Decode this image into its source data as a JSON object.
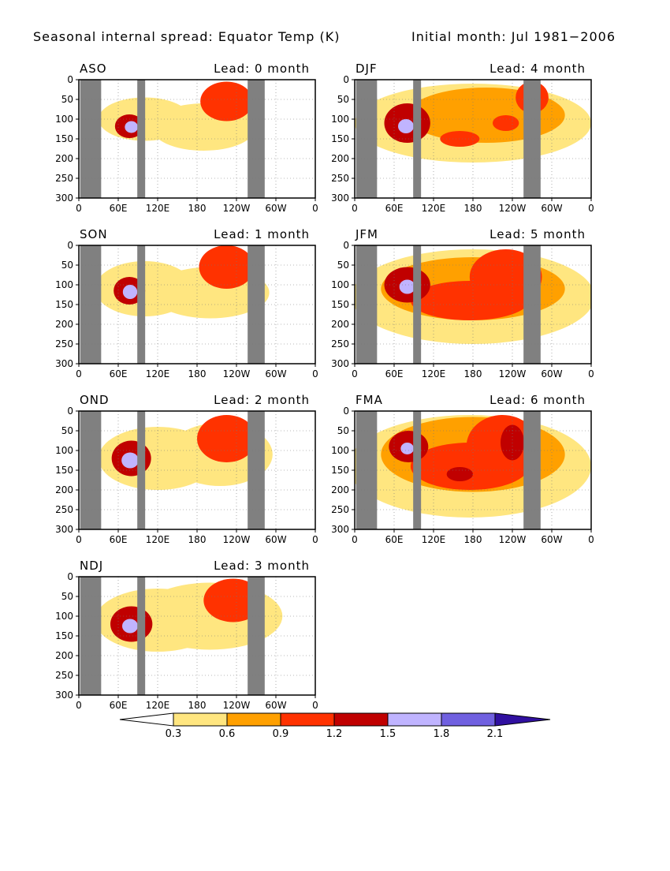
{
  "title_left": "Seasonal internal spread: Equator Temp (K)",
  "title_right": "Initial month: Jul 1981−2006",
  "colors": {
    "land": "#808080",
    "levels": [
      "#ffffff",
      "#ffe680",
      "#ffa000",
      "#ff3200",
      "#c00000",
      "#c0b4ff",
      "#7060e0",
      "#3010a0"
    ]
  },
  "chart_data": [
    {
      "type": "heatmap",
      "season": "ASO",
      "lead_label": "Lead: 0 month",
      "x_ticks": [
        "0",
        "60E",
        "120E",
        "180",
        "120W",
        "60W",
        "0"
      ],
      "y_ticks": [
        "0",
        "50",
        "100",
        "150",
        "200",
        "250",
        "300"
      ],
      "xlim": [
        0,
        360
      ],
      "ylim": [
        300,
        0
      ],
      "grid": true,
      "land_lon_bands": [
        [
          2,
          34
        ],
        [
          89,
          101
        ],
        [
          257,
          283
        ]
      ],
      "blobs": [
        {
          "lon": 100,
          "depth": 100,
          "rx": 70,
          "ry": 55,
          "value": 0.45
        },
        {
          "lon": 190,
          "depth": 120,
          "rx": 80,
          "ry": 60,
          "value": 0.4
        },
        {
          "lon": 225,
          "depth": 55,
          "rx": 40,
          "ry": 50,
          "value": 0.9
        },
        {
          "lon": 240,
          "depth": 45,
          "rx": 18,
          "ry": 30,
          "value": 1.0
        },
        {
          "lon": 77,
          "depth": 118,
          "rx": 22,
          "ry": 30,
          "value": 1.35
        },
        {
          "lon": 80,
          "depth": 120,
          "rx": 10,
          "ry": 15,
          "value": 1.65
        }
      ]
    },
    {
      "type": "heatmap",
      "season": "SON",
      "lead_label": "Lead: 1 month",
      "x_ticks": [
        "0",
        "60E",
        "120E",
        "180",
        "120W",
        "60W",
        "0"
      ],
      "y_ticks": [
        "0",
        "50",
        "100",
        "150",
        "200",
        "250",
        "300"
      ],
      "xlim": [
        0,
        360
      ],
      "ylim": [
        300,
        0
      ],
      "grid": true,
      "land_lon_bands": [
        [
          2,
          34
        ],
        [
          89,
          101
        ],
        [
          257,
          283
        ]
      ],
      "blobs": [
        {
          "lon": 100,
          "depth": 110,
          "rx": 75,
          "ry": 70,
          "value": 0.45
        },
        {
          "lon": 200,
          "depth": 120,
          "rx": 90,
          "ry": 65,
          "value": 0.4
        },
        {
          "lon": 225,
          "depth": 55,
          "rx": 42,
          "ry": 55,
          "value": 0.9
        },
        {
          "lon": 235,
          "depth": 45,
          "rx": 18,
          "ry": 28,
          "value": 1.0
        },
        {
          "lon": 77,
          "depth": 115,
          "rx": 24,
          "ry": 35,
          "value": 1.35
        },
        {
          "lon": 78,
          "depth": 118,
          "rx": 11,
          "ry": 18,
          "value": 1.65
        }
      ]
    },
    {
      "type": "heatmap",
      "season": "OND",
      "lead_label": "Lead: 2 month",
      "x_ticks": [
        "0",
        "60E",
        "120E",
        "180",
        "120W",
        "60W",
        "0"
      ],
      "y_ticks": [
        "0",
        "50",
        "100",
        "150",
        "200",
        "250",
        "300"
      ],
      "xlim": [
        0,
        360
      ],
      "ylim": [
        300,
        0
      ],
      "grid": true,
      "land_lon_bands": [
        [
          2,
          34
        ],
        [
          89,
          101
        ],
        [
          257,
          283
        ]
      ],
      "blobs": [
        {
          "lon": 120,
          "depth": 120,
          "rx": 90,
          "ry": 80,
          "value": 0.45
        },
        {
          "lon": 215,
          "depth": 110,
          "rx": 80,
          "ry": 80,
          "value": 0.4
        },
        {
          "lon": 225,
          "depth": 70,
          "rx": 45,
          "ry": 60,
          "value": 0.9
        },
        {
          "lon": 240,
          "depth": 40,
          "rx": 15,
          "ry": 25,
          "value": 1.0
        },
        {
          "lon": 80,
          "depth": 120,
          "rx": 30,
          "ry": 45,
          "value": 1.35
        },
        {
          "lon": 78,
          "depth": 125,
          "rx": 13,
          "ry": 20,
          "value": 1.7
        }
      ]
    },
    {
      "type": "heatmap",
      "season": "NDJ",
      "lead_label": "Lead: 3 month",
      "x_ticks": [
        "0",
        "60E",
        "120E",
        "180",
        "120W",
        "60W",
        "0"
      ],
      "y_ticks": [
        "0",
        "50",
        "100",
        "150",
        "200",
        "250",
        "300"
      ],
      "xlim": [
        0,
        360
      ],
      "ylim": [
        300,
        0
      ],
      "grid": true,
      "land_lon_bands": [
        [
          2,
          34
        ],
        [
          89,
          101
        ],
        [
          257,
          283
        ]
      ],
      "blobs": [
        {
          "lon": 120,
          "depth": 110,
          "rx": 95,
          "ry": 80,
          "value": 0.45
        },
        {
          "lon": 200,
          "depth": 100,
          "rx": 110,
          "ry": 85,
          "value": 0.4
        },
        {
          "lon": 235,
          "depth": 60,
          "rx": 45,
          "ry": 55,
          "value": 0.9
        },
        {
          "lon": 245,
          "depth": 35,
          "rx": 14,
          "ry": 20,
          "value": 1.0
        },
        {
          "lon": 80,
          "depth": 120,
          "rx": 32,
          "ry": 45,
          "value": 1.35
        },
        {
          "lon": 78,
          "depth": 125,
          "rx": 12,
          "ry": 18,
          "value": 1.7
        }
      ]
    },
    {
      "type": "heatmap",
      "season": "DJF",
      "lead_label": "Lead: 4 month",
      "x_ticks": [
        "0",
        "60E",
        "120E",
        "180",
        "120W",
        "60W",
        "0"
      ],
      "y_ticks": [
        "0",
        "50",
        "100",
        "150",
        "200",
        "250",
        "300"
      ],
      "xlim": [
        0,
        360
      ],
      "ylim": [
        300,
        0
      ],
      "grid": true,
      "land_lon_bands": [
        [
          2,
          34
        ],
        [
          89,
          101
        ],
        [
          257,
          283
        ]
      ],
      "blobs": [
        {
          "lon": 180,
          "depth": 110,
          "rx": 180,
          "ry": 100,
          "value": 0.45
        },
        {
          "lon": 200,
          "depth": 90,
          "rx": 120,
          "ry": 70,
          "value": 0.8
        },
        {
          "lon": 270,
          "depth": 45,
          "rx": 25,
          "ry": 40,
          "value": 0.95
        },
        {
          "lon": 160,
          "depth": 150,
          "rx": 30,
          "ry": 20,
          "value": 1.0
        },
        {
          "lon": 230,
          "depth": 110,
          "rx": 20,
          "ry": 20,
          "value": 1.0
        },
        {
          "lon": 80,
          "depth": 110,
          "rx": 35,
          "ry": 50,
          "value": 1.3
        },
        {
          "lon": 78,
          "depth": 118,
          "rx": 12,
          "ry": 18,
          "value": 1.7
        }
      ]
    },
    {
      "type": "heatmap",
      "season": "JFM",
      "lead_label": "Lead: 5 month",
      "x_ticks": [
        "0",
        "60E",
        "120E",
        "180",
        "120W",
        "60W",
        "0"
      ],
      "y_ticks": [
        "0",
        "50",
        "100",
        "150",
        "200",
        "250",
        "300"
      ],
      "xlim": [
        0,
        360
      ],
      "ylim": [
        300,
        0
      ],
      "grid": true,
      "land_lon_bands": [
        [
          2,
          34
        ],
        [
          89,
          101
        ],
        [
          257,
          283
        ]
      ],
      "blobs": [
        {
          "lon": 180,
          "depth": 130,
          "rx": 185,
          "ry": 120,
          "value": 0.45
        },
        {
          "lon": 180,
          "depth": 110,
          "rx": 140,
          "ry": 80,
          "value": 0.8
        },
        {
          "lon": 175,
          "depth": 140,
          "rx": 90,
          "ry": 50,
          "value": 1.0
        },
        {
          "lon": 230,
          "depth": 80,
          "rx": 55,
          "ry": 70,
          "value": 1.0
        },
        {
          "lon": 80,
          "depth": 100,
          "rx": 35,
          "ry": 45,
          "value": 1.3
        },
        {
          "lon": 80,
          "depth": 105,
          "rx": 12,
          "ry": 18,
          "value": 1.6
        }
      ]
    },
    {
      "type": "heatmap",
      "season": "FMA",
      "lead_label": "Lead: 6 month",
      "x_ticks": [
        "0",
        "60E",
        "120E",
        "180",
        "120W",
        "60W",
        "0"
      ],
      "y_ticks": [
        "0",
        "50",
        "100",
        "150",
        "200",
        "250",
        "300"
      ],
      "xlim": [
        0,
        360
      ],
      "ylim": [
        300,
        0
      ],
      "grid": true,
      "land_lon_bands": [
        [
          2,
          34
        ],
        [
          89,
          101
        ],
        [
          257,
          283
        ]
      ],
      "blobs": [
        {
          "lon": 175,
          "depth": 140,
          "rx": 185,
          "ry": 130,
          "value": 0.45
        },
        {
          "lon": 180,
          "depth": 110,
          "rx": 140,
          "ry": 95,
          "value": 0.8
        },
        {
          "lon": 175,
          "depth": 140,
          "rx": 90,
          "ry": 60,
          "value": 1.0
        },
        {
          "lon": 225,
          "depth": 90,
          "rx": 55,
          "ry": 80,
          "value": 1.0
        },
        {
          "lon": 240,
          "depth": 80,
          "rx": 18,
          "ry": 45,
          "value": 1.3
        },
        {
          "lon": 160,
          "depth": 160,
          "rx": 20,
          "ry": 18,
          "value": 1.3
        },
        {
          "lon": 82,
          "depth": 90,
          "rx": 30,
          "ry": 40,
          "value": 1.3
        },
        {
          "lon": 80,
          "depth": 95,
          "rx": 10,
          "ry": 15,
          "value": 1.6
        }
      ]
    }
  ],
  "colorbar": {
    "tick_labels": [
      "0.3",
      "0.6",
      "0.9",
      "1.2",
      "1.5",
      "1.8",
      "2.1"
    ],
    "bounds": [
      0.3,
      0.6,
      0.9,
      1.2,
      1.5,
      1.8,
      2.1
    ]
  }
}
